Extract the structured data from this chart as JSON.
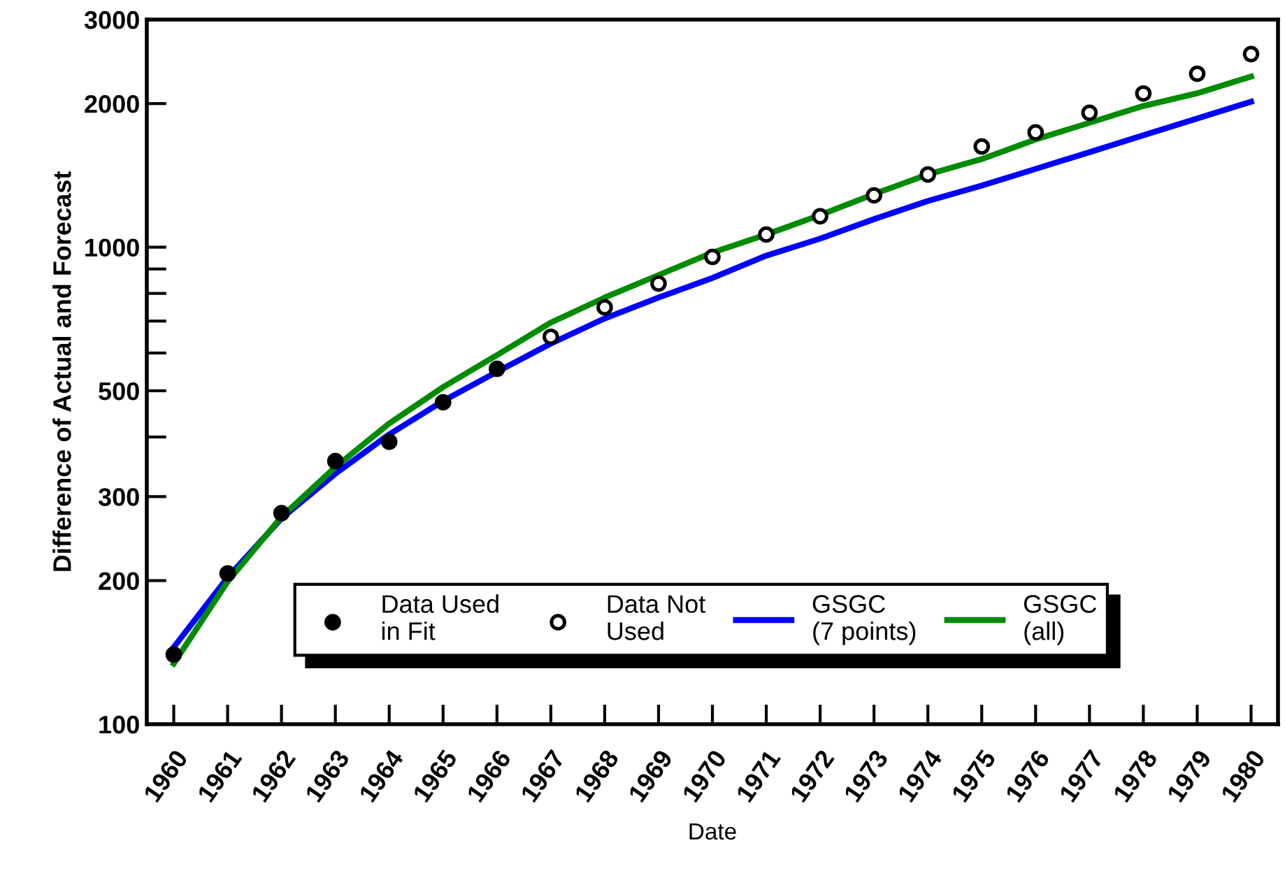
{
  "chart_data": {
    "type": "line",
    "xlabel": "Date",
    "ylabel": "Difference of Actual and Forecast",
    "log": "y",
    "grid": false,
    "legend": "bottom",
    "xlim": [
      1959.5,
      1980.5
    ],
    "xticks": [
      1960,
      1961,
      1962,
      1963,
      1964,
      1965,
      1966,
      1967,
      1968,
      1969,
      1970,
      1971,
      1972,
      1973,
      1974,
      1975,
      1976,
      1977,
      1978,
      1979,
      1980
    ],
    "ylim": [
      100,
      3000
    ],
    "yticks": [
      100,
      200,
      300,
      {
        "value": 400,
        "label": null
      },
      500,
      {
        "value": 600,
        "label": null
      },
      {
        "value": 700,
        "label": null
      },
      {
        "value": 800,
        "label": null
      },
      {
        "value": 900,
        "label": null
      },
      1000,
      2000,
      3000
    ],
    "series": [
      {
        "name": "Data Used\nin Fit",
        "type": "scatter",
        "marker": "circle",
        "color": "#000000",
        "x": [
          1960,
          1961,
          1962,
          1963,
          1964,
          1965,
          1966
        ],
        "values": [
          140,
          207,
          277,
          356,
          391,
          473,
          556
        ]
      },
      {
        "name": "Data Not\nUsed",
        "type": "scatter",
        "marker": "circle",
        "color": "#ffffff",
        "x": [
          1967,
          1968,
          1969,
          1970,
          1971,
          1972,
          1973,
          1974,
          1975,
          1976,
          1977,
          1978,
          1979,
          1980
        ],
        "values": [
          649,
          748,
          839,
          954,
          1063,
          1161,
          1284,
          1420,
          1626,
          1740,
          1913,
          2100,
          2310,
          2540
        ]
      },
      {
        "name": "GSGC\n(7 points)",
        "color": "#0000ff",
        "x": [
          1960,
          1961,
          1962,
          1963,
          1964,
          1965,
          1966,
          1967,
          1968,
          1969,
          1970,
          1971,
          1972,
          1973,
          1974,
          1975,
          1976,
          1977,
          1978,
          1979,
          1980
        ],
        "values": [
          145,
          203,
          270,
          335,
          405,
          476,
          548,
          628,
          709,
          784,
          862,
          960,
          1042,
          1145,
          1250,
          1346,
          1459,
          1582,
          1716,
          1861,
          2018
        ]
      },
      {
        "name": "GSGC\n(all)",
        "color": "#008c00",
        "x": [
          1960,
          1961,
          1962,
          1963,
          1964,
          1965,
          1966,
          1967,
          1968,
          1969,
          1970,
          1971,
          1972,
          1973,
          1974,
          1975,
          1976,
          1977,
          1978,
          1979,
          1980
        ],
        "values": [
          134,
          199,
          272,
          346,
          427,
          509,
          594,
          695,
          784,
          874,
          974,
          1063,
          1168,
          1292,
          1421,
          1530,
          1682,
          1823,
          1977,
          2102,
          2279
        ]
      }
    ]
  }
}
